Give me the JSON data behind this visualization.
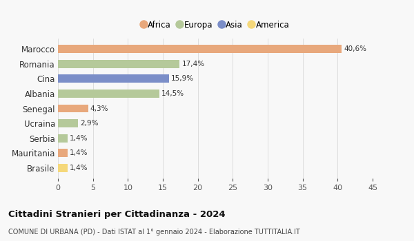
{
  "categories": [
    "Marocco",
    "Romania",
    "Cina",
    "Albania",
    "Senegal",
    "Ucraina",
    "Serbia",
    "Mauritania",
    "Brasile"
  ],
  "values": [
    40.6,
    17.4,
    15.9,
    14.5,
    4.3,
    2.9,
    1.4,
    1.4,
    1.4
  ],
  "labels": [
    "40,6%",
    "17,4%",
    "15,9%",
    "14,5%",
    "4,3%",
    "2,9%",
    "1,4%",
    "1,4%",
    "1,4%"
  ],
  "colors": [
    "#E8A87C",
    "#B5C99A",
    "#7B8EC8",
    "#B5C99A",
    "#E8A87C",
    "#B5C99A",
    "#B5C99A",
    "#E8A87C",
    "#F5D87A"
  ],
  "legend_labels": [
    "Africa",
    "Europa",
    "Asia",
    "America"
  ],
  "legend_colors": [
    "#E8A87C",
    "#B5C99A",
    "#7B8EC8",
    "#F5D87A"
  ],
  "xlim": [
    0,
    45
  ],
  "xticks": [
    0,
    5,
    10,
    15,
    20,
    25,
    30,
    35,
    40,
    45
  ],
  "title": "Cittadini Stranieri per Cittadinanza - 2024",
  "subtitle": "COMUNE DI URBANA (PD) - Dati ISTAT al 1° gennaio 2024 - Elaborazione TUTTITALIA.IT",
  "background_color": "#f8f8f8",
  "grid_color": "#dddddd",
  "bar_height": 0.55
}
